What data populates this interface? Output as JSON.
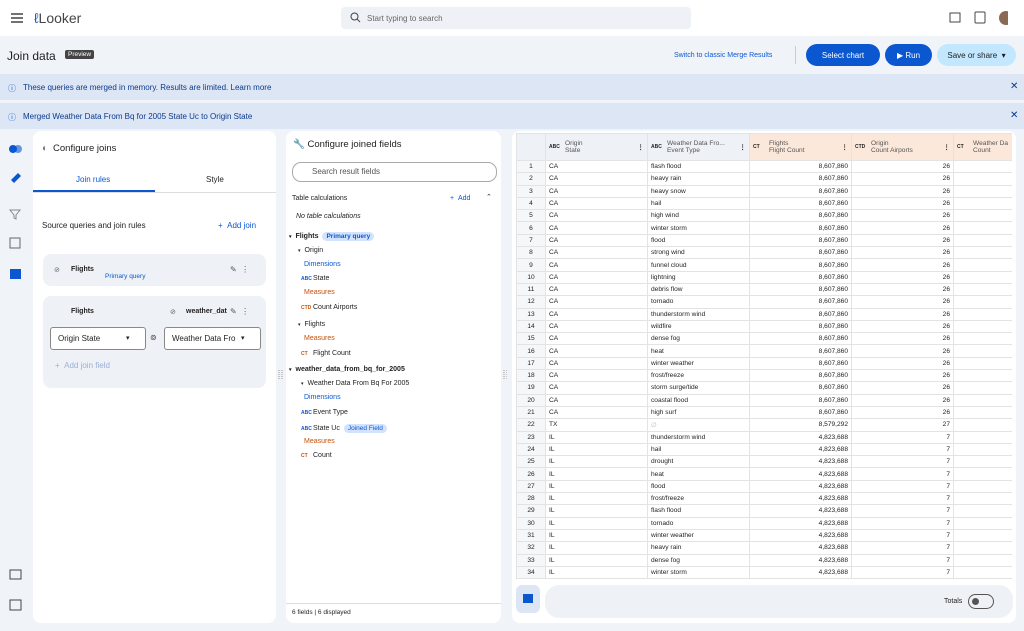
{
  "header": {
    "app_name": "Looker",
    "search_placeholder": "Start typing to search"
  },
  "toolbar": {
    "title": "Join data",
    "badge": "Preview",
    "classic_link": "Switch to classic Merge Results",
    "select_chart": "Select chart",
    "run": "Run",
    "save": "Save or share"
  },
  "banners": [
    {
      "text": "These queries are merged in memory. Results are limited.",
      "link": "Learn more"
    },
    {
      "text": "Merged Weather Data From Bq for 2005 State Uc to Origin State"
    }
  ],
  "joins": {
    "title": "Configure joins",
    "tabs": [
      "Join rules",
      "Style"
    ],
    "section": "Source queries and join rules",
    "add_join": "Add join",
    "primary": {
      "name": "Flights",
      "badge": "Primary query"
    },
    "join": {
      "left": "Flights",
      "right": "weather_dat",
      "left_field": "Origin State",
      "right_field": "Weather Data Fro",
      "add_field": "Add join field"
    }
  },
  "fields": {
    "title": "Configure joined fields",
    "search_placeholder": "Search result fields",
    "table_calcs": "Table calculations",
    "add": "Add",
    "no_calcs": "No table calculations",
    "tree": [
      {
        "text": "Flights",
        "badge": "Primary query"
      },
      {
        "text": "Origin"
      },
      {
        "text": "Dimensions"
      },
      {
        "text": "State",
        "icon": "ABC"
      },
      {
        "text": "Measures"
      },
      {
        "text": "Count Airports",
        "icon": "CTD"
      },
      {
        "text": "Flights"
      },
      {
        "text": "Measures"
      },
      {
        "text": "Flight Count",
        "icon": "CT"
      },
      {
        "text": "weather_data_from_bq_for_2005"
      },
      {
        "text": "Weather Data From Bq For 2005"
      },
      {
        "text": "Dimensions"
      },
      {
        "text": "Event Type",
        "icon": "ABC"
      },
      {
        "text": "State Uc",
        "icon": "ABC",
        "badge": "Joined Field"
      },
      {
        "text": "Measures"
      },
      {
        "text": "Count",
        "icon": "CT"
      }
    ],
    "footer": "6 fields | 6 displayed"
  },
  "results": {
    "columns": [
      {
        "icon": "ABC",
        "group": "Origin",
        "name": "State"
      },
      {
        "icon": "ABC",
        "group": "Weather Data Fro...",
        "name": "Event Type"
      },
      {
        "icon": "CT",
        "group": "Flights",
        "name": "Flight Count"
      },
      {
        "icon": "CTD",
        "group": "Origin",
        "name": "Count Airports"
      },
      {
        "icon": "CT",
        "group": "Weather Da",
        "name": "Count"
      }
    ],
    "rows": [
      [
        1,
        "CA",
        "flash flood",
        "8,607,860",
        26
      ],
      [
        2,
        "CA",
        "heavy rain",
        "8,607,860",
        26
      ],
      [
        3,
        "CA",
        "heavy snow",
        "8,607,860",
        26
      ],
      [
        4,
        "CA",
        "hail",
        "8,607,860",
        26
      ],
      [
        5,
        "CA",
        "high wind",
        "8,607,860",
        26
      ],
      [
        6,
        "CA",
        "winter storm",
        "8,607,860",
        26
      ],
      [
        7,
        "CA",
        "flood",
        "8,607,860",
        26
      ],
      [
        8,
        "CA",
        "strong wind",
        "8,607,860",
        26
      ],
      [
        9,
        "CA",
        "funnel cloud",
        "8,607,860",
        26
      ],
      [
        10,
        "CA",
        "lightning",
        "8,607,860",
        26
      ],
      [
        11,
        "CA",
        "debris flow",
        "8,607,860",
        26
      ],
      [
        12,
        "CA",
        "tornado",
        "8,607,860",
        26
      ],
      [
        13,
        "CA",
        "thunderstorm wind",
        "8,607,860",
        26
      ],
      [
        14,
        "CA",
        "wildfire",
        "8,607,860",
        26
      ],
      [
        15,
        "CA",
        "dense fog",
        "8,607,860",
        26
      ],
      [
        16,
        "CA",
        "heat",
        "8,607,860",
        26
      ],
      [
        17,
        "CA",
        "winter weather",
        "8,607,860",
        26
      ],
      [
        18,
        "CA",
        "frost/freeze",
        "8,607,860",
        26
      ],
      [
        19,
        "CA",
        "storm surge/tide",
        "8,607,860",
        26
      ],
      [
        20,
        "CA",
        "coastal flood",
        "8,607,860",
        26
      ],
      [
        21,
        "CA",
        "high surf",
        "8,607,860",
        26
      ],
      [
        22,
        "TX",
        "∅",
        "8,579,292",
        27
      ],
      [
        23,
        "IL",
        "thunderstorm wind",
        "4,823,688",
        7
      ],
      [
        24,
        "IL",
        "hail",
        "4,823,688",
        7
      ],
      [
        25,
        "IL",
        "drought",
        "4,823,688",
        7
      ],
      [
        26,
        "IL",
        "heat",
        "4,823,688",
        7
      ],
      [
        27,
        "IL",
        "flood",
        "4,823,688",
        7
      ],
      [
        28,
        "IL",
        "frost/freeze",
        "4,823,688",
        7
      ],
      [
        29,
        "IL",
        "flash flood",
        "4,823,688",
        7
      ],
      [
        30,
        "IL",
        "tornado",
        "4,823,688",
        7
      ],
      [
        31,
        "IL",
        "winter weather",
        "4,823,688",
        7
      ],
      [
        32,
        "IL",
        "heavy rain",
        "4,823,688",
        7
      ],
      [
        33,
        "IL",
        "dense fog",
        "4,823,688",
        7
      ],
      [
        34,
        "IL",
        "winter storm",
        "4,823,688",
        7
      ]
    ],
    "totals": "Totals"
  }
}
